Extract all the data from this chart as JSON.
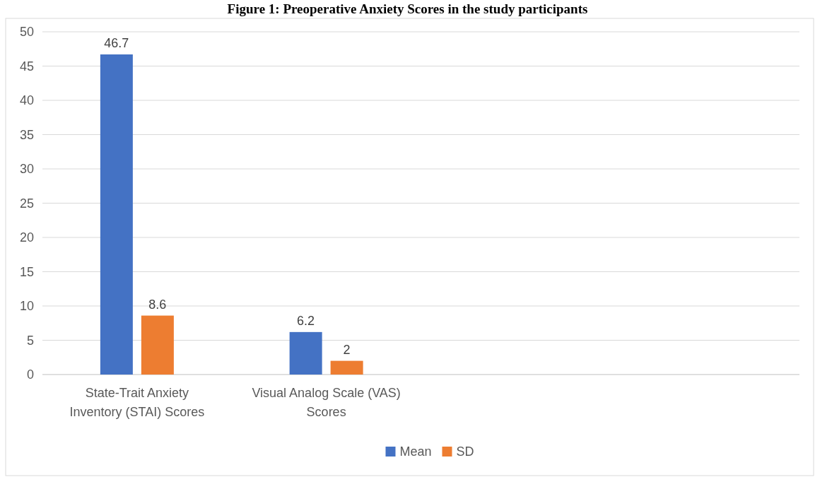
{
  "chart_data": {
    "type": "bar",
    "title": "Figure 1: Preoperative Anxiety Scores in the study participants",
    "categories": [
      "State-Trait Anxiety Inventory (STAI) Scores",
      "Visual Analog Scale (VAS) Scores",
      null,
      null
    ],
    "series": [
      {
        "name": "Mean",
        "color": "#4472c4",
        "values": [
          46.7,
          6.2,
          null,
          null
        ]
      },
      {
        "name": "SD",
        "color": "#ed7d31",
        "values": [
          8.6,
          2,
          null,
          null
        ]
      }
    ],
    "ylim": [
      0,
      50
    ],
    "yticks": [
      0,
      5,
      10,
      15,
      20,
      25,
      30,
      35,
      40,
      45,
      50
    ],
    "grid": "y",
    "legend": "bottom",
    "data_labels": true
  }
}
